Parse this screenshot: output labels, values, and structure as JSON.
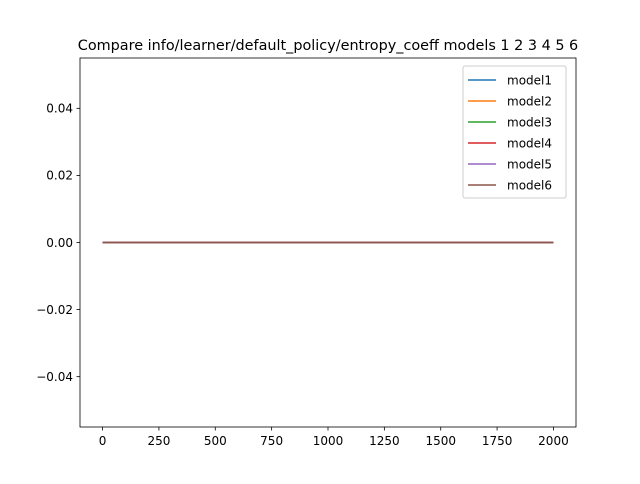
{
  "chart_data": {
    "type": "line",
    "title": "Compare info/learner/default_policy/entropy_coeff models 1 2 3 4 5 6",
    "xlabel": "",
    "ylabel": "",
    "xlim": [
      -100,
      2100
    ],
    "ylim": [
      -0.055,
      0.055
    ],
    "xticks": [
      0,
      250,
      500,
      750,
      1000,
      1250,
      1500,
      1750,
      2000
    ],
    "xtick_labels": [
      "0",
      "250",
      "500",
      "750",
      "1000",
      "1250",
      "1500",
      "1750",
      "2000"
    ],
    "yticks": [
      0.04,
      0.02,
      0.0,
      -0.02,
      -0.04
    ],
    "ytick_labels": [
      "0.04",
      "0.02",
      "0.00",
      "−0.02",
      "−0.04"
    ],
    "grid": false,
    "legend_position": "top-right",
    "series": [
      {
        "name": "model1",
        "color": "#1f77b4",
        "x": [
          0,
          2000
        ],
        "y": [
          0,
          0
        ]
      },
      {
        "name": "model2",
        "color": "#ff7f0e",
        "x": [
          0,
          2000
        ],
        "y": [
          0,
          0
        ]
      },
      {
        "name": "model3",
        "color": "#2ca02c",
        "x": [
          0,
          2000
        ],
        "y": [
          0,
          0
        ]
      },
      {
        "name": "model4",
        "color": "#d62728",
        "x": [
          0,
          2000
        ],
        "y": [
          0,
          0
        ]
      },
      {
        "name": "model5",
        "color": "#9467bd",
        "x": [
          0,
          2000
        ],
        "y": [
          0,
          0
        ]
      },
      {
        "name": "model6",
        "color": "#8c564b",
        "x": [
          0,
          2000
        ],
        "y": [
          0,
          0
        ]
      }
    ]
  }
}
